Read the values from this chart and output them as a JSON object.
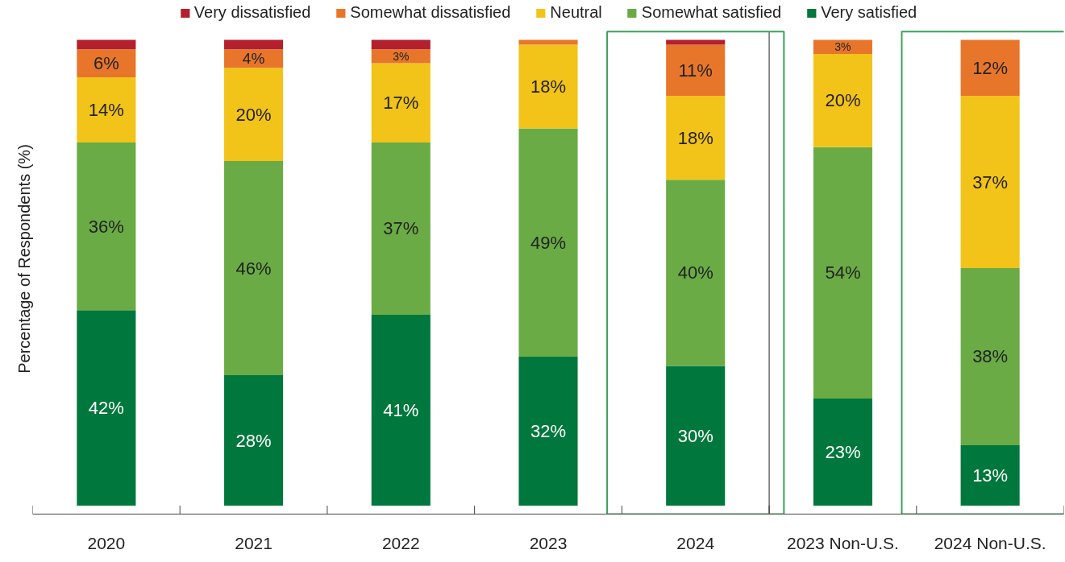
{
  "chart_data": {
    "type": "bar",
    "stacked": true,
    "ylabel": "Percentage of Respondents (%)",
    "categories": [
      "2020",
      "2021",
      "2022",
      "2023",
      "2024",
      "2023 Non-U.S.",
      "2024 Non-U.S."
    ],
    "ylim": [
      0,
      100
    ],
    "tick_labels": "x",
    "grid": false,
    "legend": "top",
    "series": [
      {
        "name": "Very satisfied",
        "color": "#00773c",
        "values": [
          42,
          28,
          41,
          32,
          30,
          23,
          13
        ],
        "value_labels": [
          "42%",
          "28%",
          "41%",
          "32%",
          "30%",
          "23%",
          "13%"
        ]
      },
      {
        "name": "Somewhat satisfied",
        "color": "#6aab46",
        "values": [
          36,
          46,
          37,
          49,
          40,
          54,
          38
        ],
        "value_labels": [
          "36%",
          "46%",
          "37%",
          "49%",
          "40%",
          "54%",
          "38%"
        ]
      },
      {
        "name": "Neutral",
        "color": "#f2c318",
        "values": [
          14,
          20,
          17,
          18,
          18,
          20,
          37
        ],
        "value_labels": [
          "14%",
          "20%",
          "17%",
          "18%",
          "18%",
          "20%",
          "37%"
        ]
      },
      {
        "name": "Somewhat dissatisfied",
        "color": "#e8762a",
        "values": [
          6,
          4,
          3,
          1,
          11,
          3,
          12
        ],
        "value_labels": [
          "6%",
          "4%",
          "3%",
          null,
          "11%",
          "3%",
          "12%"
        ]
      },
      {
        "name": "Very dissatisfied",
        "color": "#b3202e",
        "values": [
          2,
          2,
          2,
          0,
          1,
          0,
          0
        ],
        "value_labels": [
          null,
          null,
          null,
          null,
          null,
          null,
          null
        ]
      }
    ]
  }
}
